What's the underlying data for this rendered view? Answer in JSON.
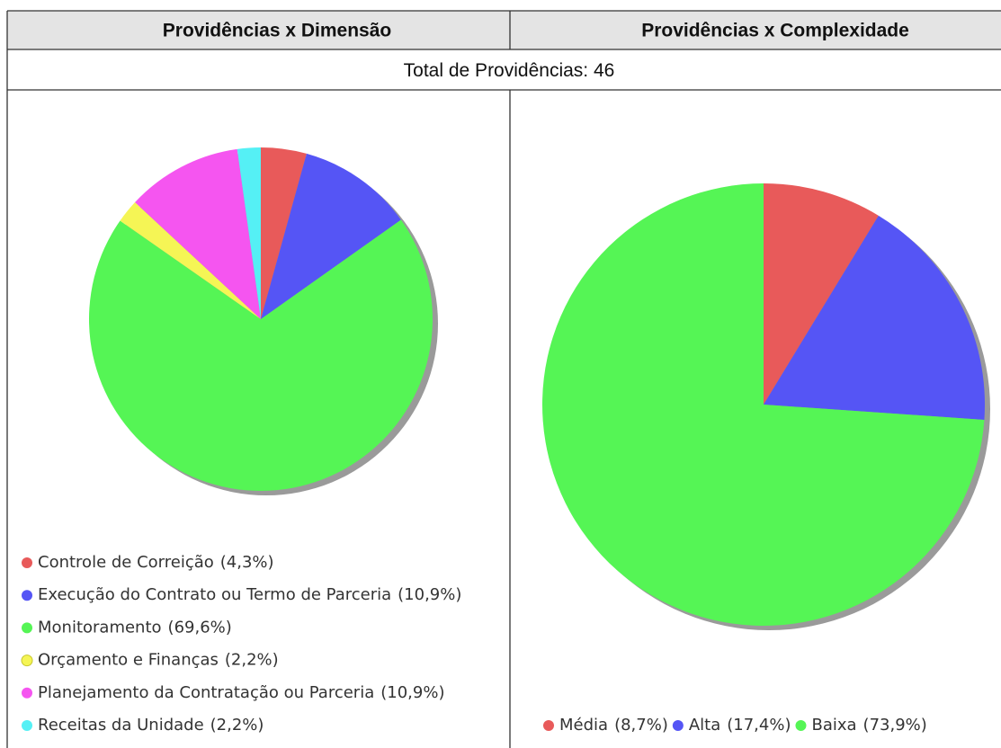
{
  "table": {
    "headers": [
      "Providências x Dimensão",
      "Providências x Complexidade"
    ],
    "total_label": "Total de Providências:",
    "total": 46
  },
  "chart_data": [
    {
      "type": "pie",
      "categories": [
        "Controle de Correição",
        "Execução do Contrato ou Termo de Parceria",
        "Monitoramento",
        "Orçamento e Finanças",
        "Planejamento da Contratação ou Parceria",
        "Receitas da Unidade"
      ],
      "values": [
        4.3,
        10.9,
        69.6,
        2.2,
        10.9,
        2.2
      ],
      "value_labels": [
        "(4,3%)",
        "(10,9%)",
        "(69,6%)",
        "(2,2%)",
        "(10,9%)",
        "(2,2%)"
      ],
      "colors": [
        "#e85a5a",
        "#5555f5",
        "#55f555",
        "#f5f555",
        "#f555f0",
        "#55f0f5"
      ]
    },
    {
      "type": "pie",
      "categories": [
        "Média",
        "Alta",
        "Baixa"
      ],
      "values": [
        8.7,
        17.4,
        73.9
      ],
      "value_labels": [
        "(8,7%)",
        "(17,4%)",
        "(73,9%)"
      ],
      "colors": [
        "#e85a5a",
        "#5555f5",
        "#55f555"
      ]
    }
  ]
}
